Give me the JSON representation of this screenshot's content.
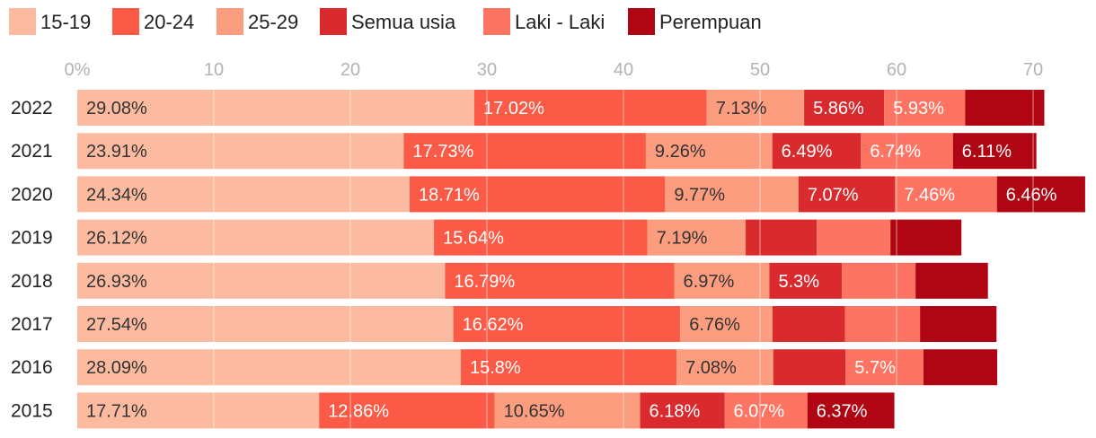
{
  "chart_data": {
    "type": "bar",
    "orientation": "horizontal",
    "stacked": true,
    "title": "",
    "xlabel": "",
    "ylabel": "",
    "xlim": [
      0,
      71
    ],
    "x_ticks": [
      "0%",
      "10",
      "20",
      "30",
      "40",
      "50",
      "60",
      "70"
    ],
    "x_tick_values": [
      0,
      10,
      20,
      30,
      40,
      50,
      60,
      70
    ],
    "grid": true,
    "legend_position": "top-left",
    "categories": [
      "2022",
      "2021",
      "2020",
      "2019",
      "2018",
      "2017",
      "2016",
      "2015"
    ],
    "series": [
      {
        "name": "15-19",
        "color": "#fcbba1",
        "label_color": "#333333",
        "values": [
          29.08,
          23.91,
          24.34,
          26.12,
          26.93,
          27.54,
          28.09,
          17.71
        ],
        "labels": [
          "29.08%",
          "23.91%",
          "24.34%",
          "26.12%",
          "26.93%",
          "27.54%",
          "28.09%",
          "17.71%"
        ]
      },
      {
        "name": "20-24",
        "color": "#fb5a46",
        "label_color": "#ffffff",
        "values": [
          17.02,
          17.73,
          18.71,
          15.64,
          16.79,
          16.62,
          15.8,
          12.86
        ],
        "labels": [
          "17.02%",
          "17.73%",
          "18.71%",
          "15.64%",
          "16.79%",
          "16.62%",
          "15.8%",
          "12.86%"
        ]
      },
      {
        "name": "25-29",
        "color": "#fc9d7f",
        "label_color": "#333333",
        "values": [
          7.13,
          9.26,
          9.77,
          7.19,
          6.97,
          6.76,
          7.08,
          10.65
        ],
        "labels": [
          "7.13%",
          "9.26%",
          "9.77%",
          "7.19%",
          "6.97%",
          "6.76%",
          "7.08%",
          "10.65%"
        ]
      },
      {
        "name": "Semua usia",
        "color": "#d92a2e",
        "label_color": "#ffffff",
        "values": [
          5.86,
          6.49,
          7.07,
          5.2,
          5.3,
          5.3,
          5.3,
          6.18
        ],
        "labels": [
          "5.86%",
          "6.49%",
          "7.07%",
          "",
          "5.3%",
          "",
          "",
          "6.18%"
        ]
      },
      {
        "name": "Laki - Laki",
        "color": "#fe7463",
        "label_color": "#ffffff",
        "values": [
          5.93,
          6.74,
          7.46,
          5.4,
          5.4,
          5.5,
          5.7,
          6.07
        ],
        "labels": [
          "5.93%",
          "6.74%",
          "7.46%",
          "",
          "",
          "",
          "5.7%",
          "6.07%"
        ]
      },
      {
        "name": "Perempuan",
        "color": "#b00512",
        "label_color": "#ffffff",
        "values": [
          5.8,
          6.11,
          6.46,
          5.2,
          5.3,
          5.6,
          5.4,
          6.37
        ],
        "labels": [
          "",
          "6.11%",
          "6.46%",
          "",
          "",
          "",
          "",
          "6.37%"
        ]
      }
    ]
  }
}
